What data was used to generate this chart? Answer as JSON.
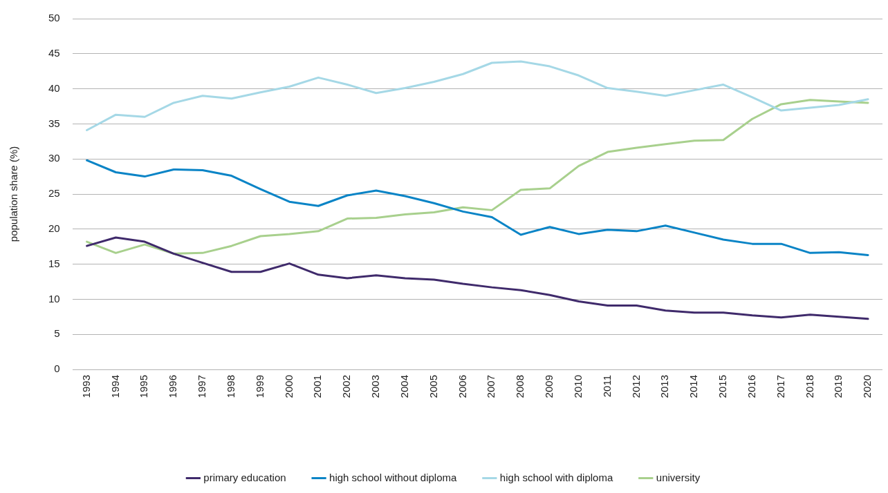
{
  "chart_data": {
    "type": "line",
    "ylabel": "population share (%)",
    "categories": [
      "1993",
      "1994",
      "1995",
      "1996",
      "1997",
      "1998",
      "1999",
      "2000",
      "2001",
      "2002",
      "2003",
      "2004",
      "2005",
      "2006",
      "2007",
      "2008",
      "2009",
      "2010",
      "2011",
      "2012",
      "2013",
      "2014",
      "2015",
      "2016",
      "2017",
      "2018",
      "2019",
      "2020"
    ],
    "series": [
      {
        "name": "primary education",
        "color": "#3f2a6b",
        "values": [
          17.6,
          18.8,
          18.2,
          16.5,
          15.2,
          13.9,
          13.9,
          15.1,
          13.5,
          13.0,
          13.4,
          13.0,
          12.8,
          12.2,
          11.7,
          11.3,
          10.6,
          9.7,
          9.1,
          9.1,
          8.4,
          8.1,
          8.1,
          7.7,
          7.4,
          7.8,
          7.5,
          7.2
        ]
      },
      {
        "name": "high school without diploma",
        "color": "#0a84c6",
        "values": [
          29.8,
          28.1,
          27.5,
          28.5,
          28.4,
          27.6,
          25.7,
          23.9,
          23.3,
          24.8,
          25.5,
          24.7,
          23.7,
          22.5,
          21.7,
          19.2,
          20.3,
          19.3,
          19.9,
          19.7,
          20.5,
          19.5,
          18.5,
          17.9,
          17.9,
          16.6,
          16.7,
          16.3
        ]
      },
      {
        "name": "high school with diploma",
        "color": "#a5d8e6",
        "values": [
          34.1,
          36.3,
          36.0,
          38.0,
          39.0,
          38.6,
          39.5,
          40.3,
          41.6,
          40.6,
          39.4,
          40.1,
          41.0,
          42.1,
          43.7,
          43.9,
          43.2,
          41.9,
          40.1,
          39.6,
          39.0,
          39.8,
          40.6,
          38.8,
          36.9,
          37.3,
          37.7,
          38.5
        ]
      },
      {
        "name": "university",
        "color": "#a8d08d",
        "values": [
          18.2,
          16.6,
          17.8,
          16.5,
          16.6,
          17.6,
          19.0,
          19.3,
          19.7,
          21.5,
          21.6,
          22.1,
          22.4,
          23.1,
          22.7,
          25.6,
          25.8,
          29.0,
          31.0,
          31.6,
          32.1,
          32.6,
          32.7,
          35.7,
          37.8,
          38.4,
          38.2,
          38.0
        ]
      }
    ],
    "ylim": [
      0,
      50
    ],
    "yticks": [
      0,
      5,
      10,
      15,
      20,
      25,
      30,
      35,
      40,
      45,
      50
    ],
    "grid": "y",
    "legend": "bottom",
    "marker": "none",
    "line_style": "solid"
  }
}
